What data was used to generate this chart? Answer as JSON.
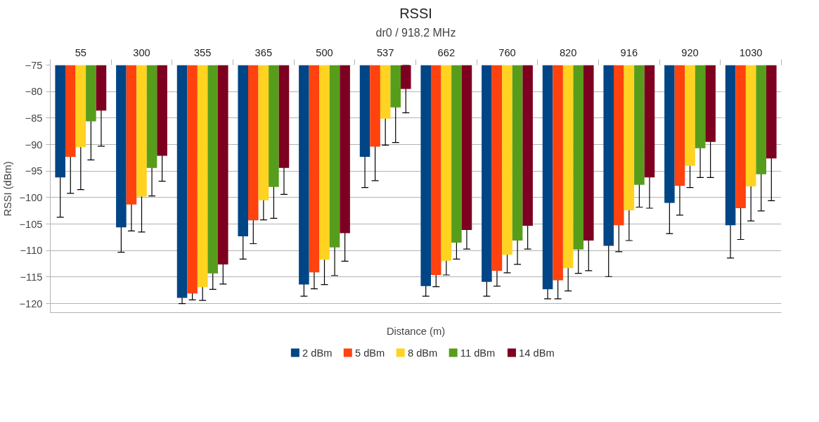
{
  "chart_data": {
    "type": "bar",
    "title": "RSSI",
    "subtitle": "dr0 / 918.2 MHz",
    "xlabel": "Distance (m)",
    "ylabel": "RSSI (dBm)",
    "categories": [
      "55",
      "300",
      "355",
      "365",
      "500",
      "537",
      "662",
      "760",
      "820",
      "916",
      "920",
      "1030"
    ],
    "series": [
      {
        "name": "2 dBm",
        "color": "#004586",
        "values": [
          -96.2,
          -105.6,
          -118.9,
          -107.3,
          -116.4,
          -92.3,
          -116.7,
          -115.9,
          -117.3,
          -109.1,
          -101.0,
          -105.2
        ],
        "errors": [
          7.5,
          4.7,
          1.1,
          4.3,
          2.2,
          5.8,
          1.9,
          2.7,
          1.8,
          5.8,
          5.8,
          6.2
        ]
      },
      {
        "name": "5 dBm",
        "color": "#ff420e",
        "values": [
          -92.3,
          -101.3,
          -118.1,
          -104.3,
          -114.1,
          -90.4,
          -114.6,
          -113.8,
          -115.6,
          -105.2,
          -97.8,
          -102.0
        ],
        "errors": [
          6.9,
          5.0,
          1.2,
          4.4,
          3.1,
          6.4,
          2.2,
          2.9,
          3.5,
          5.0,
          5.5,
          5.9
        ]
      },
      {
        "name": "8 dBm",
        "color": "#ffd320",
        "values": [
          -90.5,
          -99.8,
          -116.9,
          -100.5,
          -111.7,
          -85.1,
          -111.9,
          -110.8,
          -113.3,
          -102.4,
          -94.0,
          -97.9
        ],
        "errors": [
          8.0,
          6.7,
          2.5,
          3.7,
          4.7,
          5.0,
          2.7,
          3.4,
          4.3,
          5.7,
          4.1,
          6.5
        ]
      },
      {
        "name": "11 dBm",
        "color": "#579d1c",
        "values": [
          -85.6,
          -94.4,
          -114.3,
          -98.0,
          -109.4,
          -83.0,
          -108.5,
          -108.1,
          -109.8,
          -97.6,
          -90.7,
          -95.6
        ],
        "errors": [
          7.3,
          5.3,
          3.0,
          5.9,
          5.3,
          6.6,
          3.1,
          4.5,
          4.5,
          4.2,
          5.5,
          6.9
        ]
      },
      {
        "name": "14 dBm",
        "color": "#7e0021",
        "values": [
          -83.6,
          -92.1,
          -112.6,
          -94.4,
          -106.7,
          -79.5,
          -106.1,
          -105.3,
          -108.1,
          -96.2,
          -89.5,
          -92.6
        ],
        "errors": [
          6.7,
          4.8,
          3.7,
          5.0,
          5.3,
          4.5,
          3.6,
          4.4,
          5.7,
          5.8,
          6.7,
          8.0
        ]
      }
    ],
    "ylim": [
      -121.7,
      -75
    ],
    "yticks": [
      -120,
      -115,
      -110,
      -105,
      -100,
      -95,
      -90,
      -85,
      -80,
      -75
    ],
    "grid": "y",
    "legend": "bottom"
  }
}
